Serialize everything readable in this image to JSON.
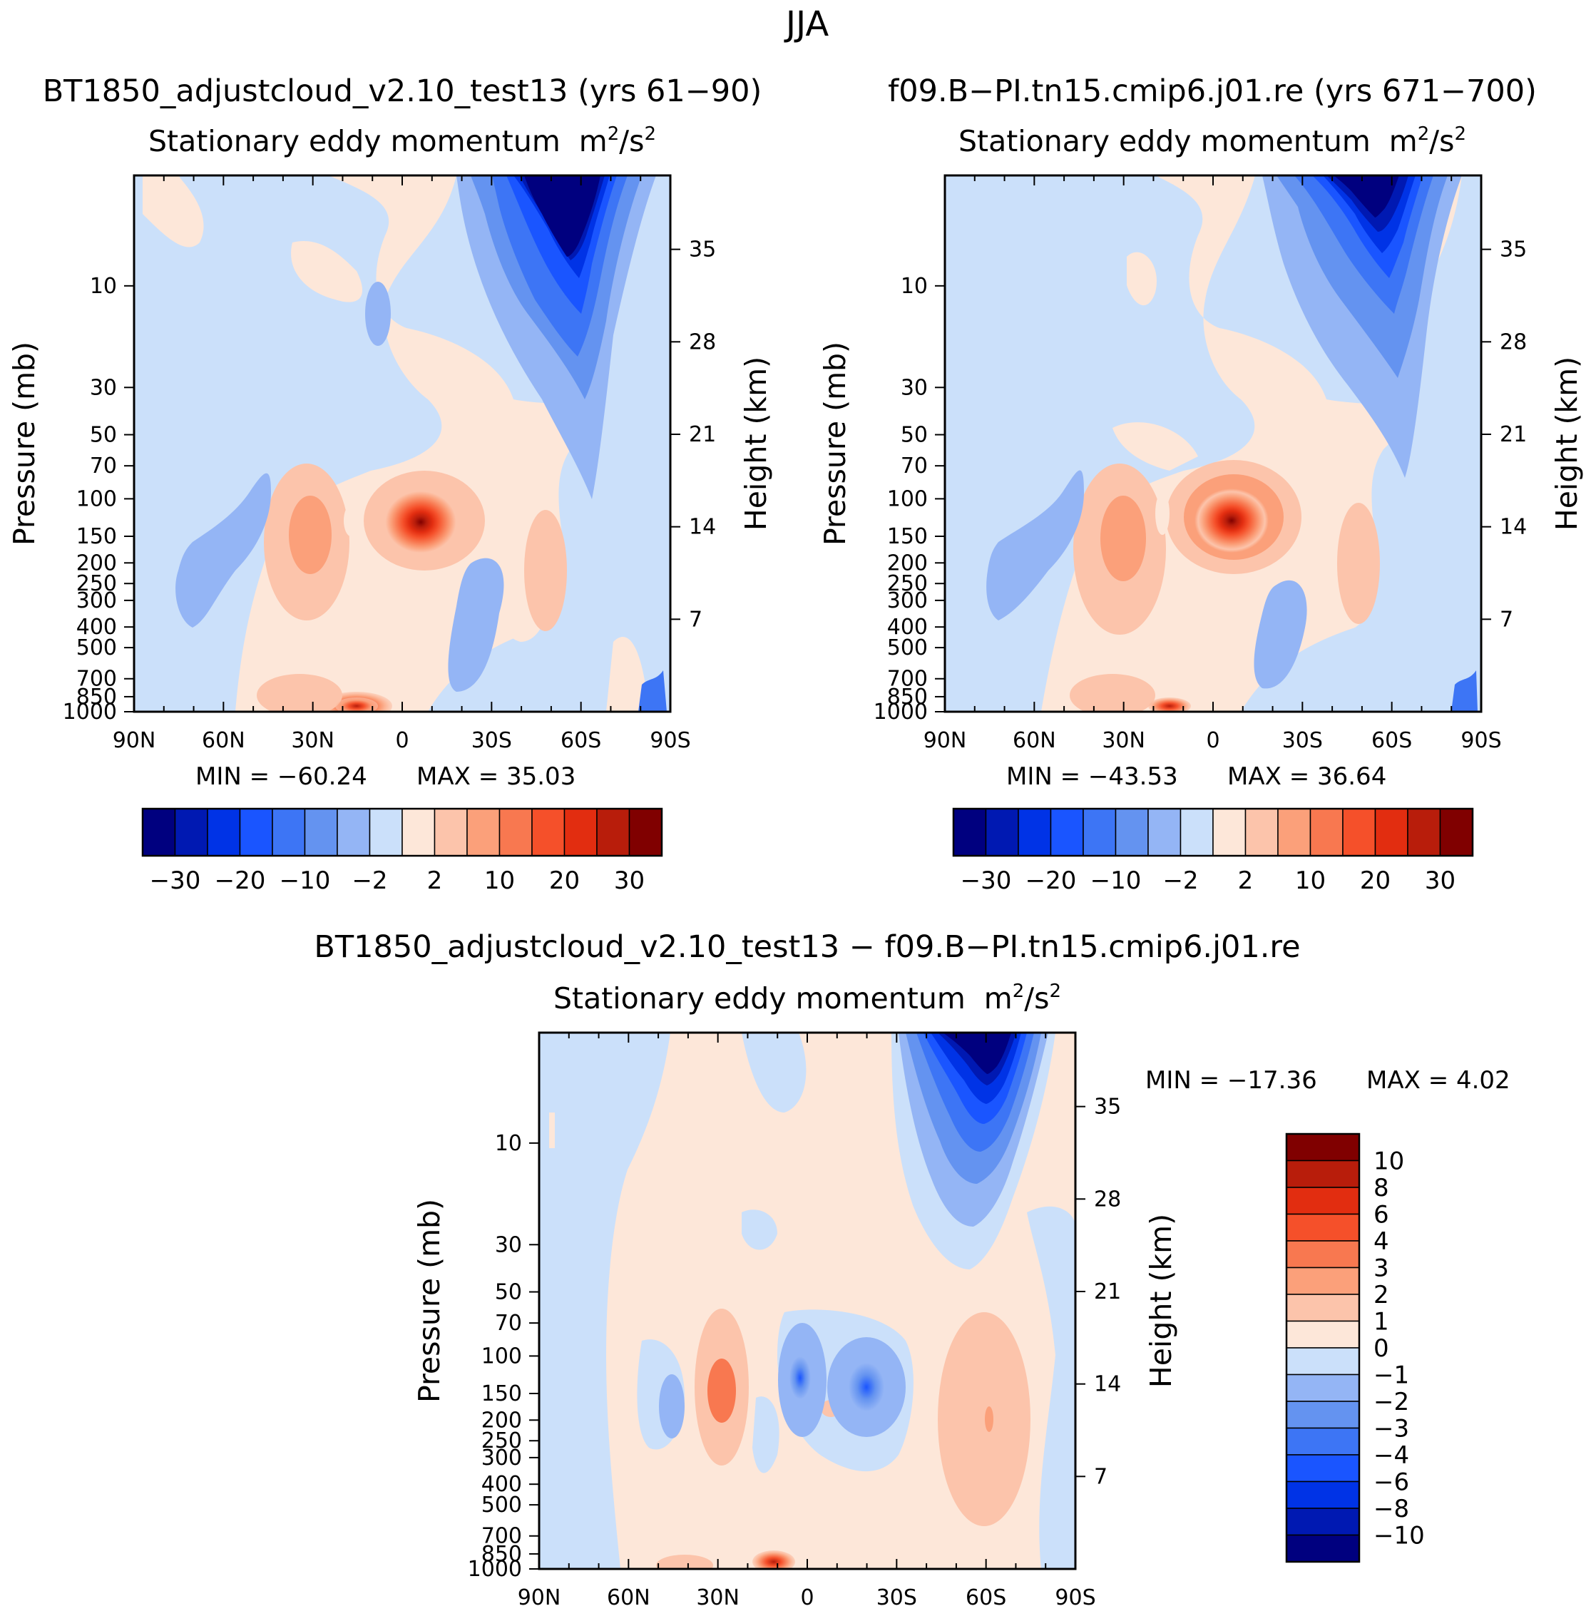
{
  "chart_data": [
    {
      "type": "heatmap",
      "overall_title": "JJA",
      "case_title": "BT1850_adjustcloud_v2.10_test13 (yrs 61−90)",
      "variable_title": "Stationary eddy momentum",
      "units_base": "m",
      "units_exp1": "2",
      "units_mid": "/s",
      "units_exp2": "2",
      "xlabel": "",
      "ylabel": "Pressure (mb)",
      "ylabel_right": "Height (km)",
      "x_ticks": [
        "90N",
        "60N",
        "30N",
        "0",
        "30S",
        "60S",
        "90S"
      ],
      "y_ticks": [
        "10",
        "30",
        "50",
        "70",
        "100",
        "150",
        "200",
        "250",
        "300",
        "400",
        "500",
        "700",
        "850",
        "1000"
      ],
      "y_right_ticks": [
        "35",
        "28",
        "21",
        "14",
        "7"
      ],
      "min_text": "MIN = −60.24",
      "max_text": "MAX = 35.03",
      "min": -60.24,
      "max": 35.03,
      "colorbar_labels": [
        "−30",
        "−20",
        "−10",
        "−2",
        "2",
        "10",
        "20",
        "30"
      ],
      "colors": [
        "#00007f",
        "#0019b2",
        "#0033e6",
        "#1a55ff",
        "#3d75f5",
        "#6493f0",
        "#94b5f5",
        "#cbe0fa",
        "#fde7d9",
        "#fcc4ab",
        "#fba07a",
        "#f87850",
        "#f5502a",
        "#e22d10",
        "#b81d0b",
        "#800000"
      ]
    },
    {
      "type": "heatmap",
      "case_title": "f09.B−PI.tn15.cmip6.j01.re (yrs 671−700)",
      "variable_title": "Stationary eddy momentum",
      "units_base": "m",
      "units_exp1": "2",
      "units_mid": "/s",
      "units_exp2": "2",
      "ylabel": "Pressure (mb)",
      "ylabel_right": "Height (km)",
      "x_ticks": [
        "90N",
        "60N",
        "30N",
        "0",
        "30S",
        "60S",
        "90S"
      ],
      "y_ticks": [
        "10",
        "30",
        "50",
        "70",
        "100",
        "150",
        "200",
        "250",
        "300",
        "400",
        "500",
        "700",
        "850",
        "1000"
      ],
      "y_right_ticks": [
        "35",
        "28",
        "21",
        "14",
        "7"
      ],
      "min_text": "MIN = −43.53",
      "max_text": "MAX = 36.64",
      "min": -43.53,
      "max": 36.64,
      "colorbar_labels": [
        "−30",
        "−20",
        "−10",
        "−2",
        "2",
        "10",
        "20",
        "30"
      ]
    },
    {
      "type": "heatmap",
      "case_title": "BT1850_adjustcloud_v2.10_test13 − f09.B−PI.tn15.cmip6.j01.re",
      "variable_title": "Stationary eddy momentum",
      "units_base": "m",
      "units_exp1": "2",
      "units_mid": "/s",
      "units_exp2": "2",
      "ylabel": "Pressure (mb)",
      "ylabel_right": "Height (km)",
      "x_ticks": [
        "90N",
        "60N",
        "30N",
        "0",
        "30S",
        "60S",
        "90S"
      ],
      "y_ticks": [
        "10",
        "30",
        "50",
        "70",
        "100",
        "150",
        "200",
        "250",
        "300",
        "400",
        "500",
        "700",
        "850",
        "1000"
      ],
      "y_right_ticks": [
        "35",
        "28",
        "21",
        "14",
        "7"
      ],
      "min_text": "MIN = −17.36",
      "max_text": "MAX = 4.02",
      "min": -17.36,
      "max": 4.02,
      "colorbar_labels": [
        "10",
        "8",
        "6",
        "4",
        "3",
        "2",
        "1",
        "0",
        "−1",
        "−2",
        "−3",
        "−4",
        "−6",
        "−8",
        "−10"
      ],
      "colors": [
        "#800000",
        "#b81d0b",
        "#e22d10",
        "#f5502a",
        "#f87850",
        "#fba07a",
        "#fcc4ab",
        "#fde7d9",
        "#cbe0fa",
        "#94b5f5",
        "#6493f0",
        "#3d75f5",
        "#1a55ff",
        "#0033e6",
        "#0019b2",
        "#00007f"
      ]
    }
  ]
}
